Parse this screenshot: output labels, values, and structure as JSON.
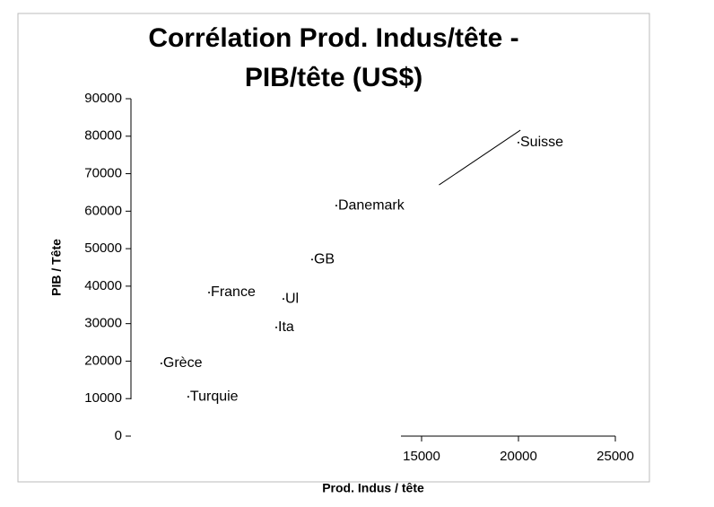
{
  "chart_data": {
    "type": "scatter",
    "title": "Corrélation Prod. Indus/tête -",
    "subtitle": "PIB/tête (US$)",
    "x_label": "Prod. Indus / tête",
    "y_label": "PIB / Tête",
    "xlim": [
      0,
      25000
    ],
    "ylim": [
      0,
      90000
    ],
    "xticks": [
      15000,
      20000,
      25000
    ],
    "yticks": [
      0,
      10000,
      20000,
      30000,
      40000,
      50000,
      60000,
      70000,
      80000,
      90000
    ],
    "point_labels": [
      "Suisse",
      "Danemark",
      "GB",
      "France",
      "Ul",
      "Ita",
      "Grèce",
      "Turquie"
    ],
    "x": [
      20000,
      10600,
      9350,
      4030,
      7870,
      7500,
      1570,
      2960
    ],
    "values": [
      78300,
      61500,
      47100,
      38300,
      36600,
      29000,
      19400,
      10500
    ],
    "trend": {
      "x": [
        15900,
        20100
      ],
      "values": [
        67000,
        81600
      ],
      "color": "#000000"
    },
    "color": "#000000"
  }
}
